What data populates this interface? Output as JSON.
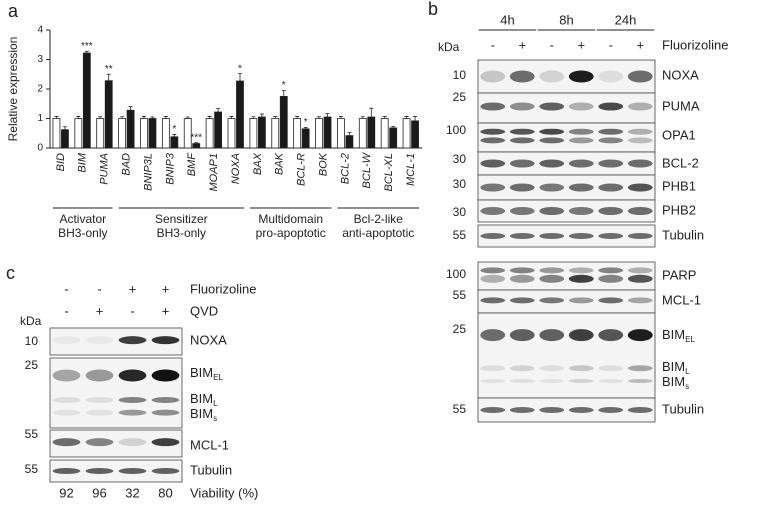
{
  "panels": {
    "a": "a",
    "b": "b",
    "c": "c"
  },
  "chart_data": {
    "type": "bar",
    "y_label": "Relative expression",
    "categories": [
      "BID",
      "BIM",
      "PUMA",
      "BAD",
      "BNIP3L",
      "BNIP3",
      "BMF",
      "MOAP1",
      "NOXA",
      "BAX",
      "BAK",
      "BCL-R",
      "BOK",
      "BCL-2",
      "BCL-W",
      "BCL-XL",
      "MCL-1"
    ],
    "series": [
      {
        "color": "#ffffff",
        "values": [
          1,
          1,
          1,
          1,
          1,
          1,
          1,
          1,
          1,
          1,
          1,
          1,
          1,
          1,
          1,
          1,
          1
        ],
        "errors": [
          0.07,
          0.07,
          0.06,
          0.06,
          0.07,
          0.07,
          0.05,
          0.07,
          0.07,
          0.06,
          0.07,
          0.07,
          0.06,
          0.07,
          0.06,
          0.07,
          0.07
        ]
      },
      {
        "color": "#1a1a1a",
        "values": [
          0.62,
          3.22,
          2.28,
          1.28,
          1.0,
          0.38,
          0.15,
          1.22,
          2.27,
          1.05,
          1.75,
          0.65,
          1.05,
          0.42,
          1.05,
          0.68,
          0.92
        ],
        "errors": [
          0.1,
          0.06,
          0.22,
          0.12,
          0.05,
          0.08,
          0.03,
          0.12,
          0.25,
          0.1,
          0.2,
          0.05,
          0.12,
          0.1,
          0.3,
          0.05,
          0.15
        ]
      }
    ],
    "significance": [
      null,
      "***",
      "**",
      null,
      null,
      "*",
      "***",
      null,
      "*",
      null,
      "*",
      "*",
      null,
      null,
      null,
      null,
      null
    ],
    "groups": [
      {
        "lines": [
          "Activator",
          "BH3-only"
        ]
      },
      {
        "lines": [
          "Sensitizer",
          "BH3-only"
        ]
      },
      {
        "lines": [
          "Multidomain",
          "pro-apoptotic"
        ]
      },
      {
        "lines": [
          "Bcl-2-like",
          "anti-apoptotic"
        ]
      }
    ],
    "ylim": [
      0,
      4
    ],
    "yticks": [
      0,
      1,
      2,
      3,
      4
    ]
  },
  "blot_b": {
    "kda": "kDa",
    "times": [
      "4h",
      "8h",
      "24h"
    ],
    "treatment": [
      "-",
      "+",
      "-",
      "+",
      "-",
      "+"
    ],
    "treatment_label": "Fluorizoline",
    "rows": [
      {
        "marker": 10,
        "label": "NOXA"
      },
      {
        "marker": 25,
        "label": "PUMA"
      },
      {
        "marker": 100,
        "label": "OPA1"
      },
      {
        "marker": 30,
        "label": "BCL-2"
      },
      {
        "marker": 30,
        "label": "PHB1"
      },
      {
        "marker": 30,
        "label": "PHB2"
      },
      {
        "marker": 55,
        "label": "Tubulin"
      },
      {
        "marker": 100,
        "label": "PARP"
      },
      {
        "marker": 55,
        "label": "MCL-1"
      },
      {
        "marker": 25,
        "labels": [
          {
            "text": "BIM",
            "sub": "EL"
          },
          {
            "text": "BIM",
            "sub": "L"
          },
          {
            "text": "BIM",
            "sub": "s"
          }
        ]
      },
      {
        "marker": 55,
        "label": "Tubulin"
      }
    ]
  },
  "blot_c": {
    "kda": "kDa",
    "conditions": [
      {
        "label": "Fluorizoline",
        "values": [
          "-",
          "-",
          "+",
          "+"
        ]
      },
      {
        "label": "QVD",
        "values": [
          "-",
          "+",
          "-",
          "+"
        ]
      }
    ],
    "rows": [
      {
        "marker": 10,
        "label": "NOXA"
      },
      {
        "marker": 25,
        "labels": [
          {
            "text": "BIM",
            "sub": "EL"
          },
          {
            "text": "BIM",
            "sub": "L"
          },
          {
            "text": "BIM",
            "sub": "s"
          }
        ]
      },
      {
        "marker": 55,
        "label": "MCL-1"
      },
      {
        "marker": 55,
        "label": "Tubulin"
      }
    ],
    "viability": [
      92,
      96,
      32,
      80
    ],
    "viability_label": "Viability (%)"
  }
}
